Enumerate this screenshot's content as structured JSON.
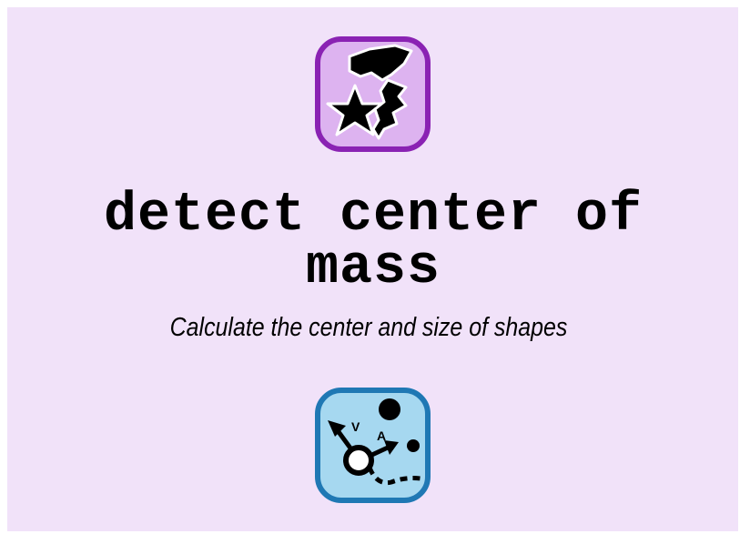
{
  "page": {
    "background_color": "#f1e2f9",
    "title": "detect center of mass",
    "subtitle": "Calculate the center and size of shapes"
  },
  "icons": {
    "top": {
      "name": "shapes-blob-star-icon",
      "border_color": "#8a22b3",
      "fill_color": "#ddb3f0"
    },
    "bottom": {
      "name": "motion-velocity-acceleration-icon",
      "border_color": "#1f78b4",
      "fill_color": "#a6d8f0",
      "labels": {
        "velocity": "V",
        "acceleration": "A"
      }
    }
  }
}
